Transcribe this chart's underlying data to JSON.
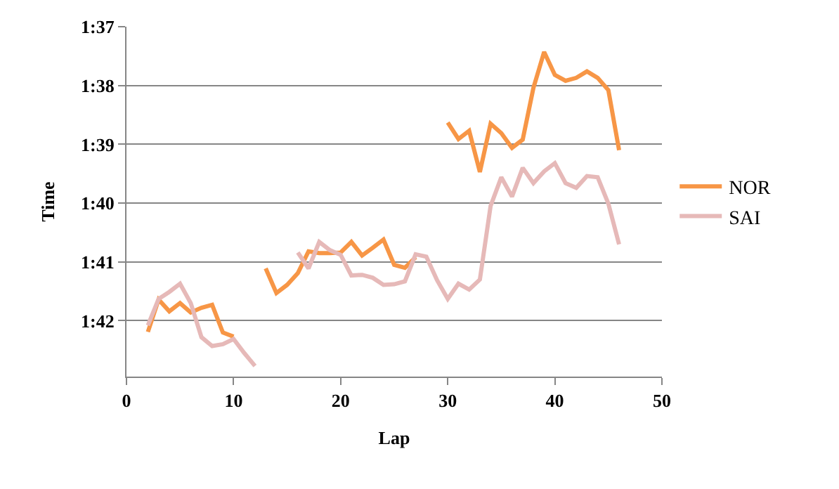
{
  "chart_data": {
    "type": "line",
    "xlabel": "Lap",
    "ylabel": "Time",
    "x": [
      2,
      3,
      4,
      5,
      6,
      7,
      8,
      9,
      10,
      11,
      12,
      13,
      14,
      15,
      16,
      17,
      18,
      19,
      20,
      21,
      22,
      23,
      24,
      25,
      26,
      27,
      28,
      29,
      30,
      31,
      32,
      33,
      34,
      35,
      36,
      37,
      38,
      39,
      40,
      41,
      42,
      43,
      44,
      45,
      46
    ],
    "series": [
      {
        "name": "NOR",
        "color": "#f79646",
        "values": [
          102.19,
          101.64,
          101.84,
          101.7,
          101.86,
          101.78,
          101.73,
          102.2,
          102.27,
          null,
          null,
          101.11,
          101.53,
          101.39,
          101.19,
          100.82,
          100.85,
          100.85,
          100.84,
          100.66,
          100.89,
          100.76,
          100.62,
          101.05,
          101.1,
          100.92,
          null,
          null,
          98.63,
          98.91,
          98.77,
          99.47,
          98.65,
          98.81,
          99.06,
          98.92,
          98.04,
          97.43,
          97.82,
          97.92,
          97.87,
          97.76,
          97.87,
          98.08,
          99.1
        ]
      },
      {
        "name": "SAI",
        "color": "#e6b9b8",
        "values": [
          102.08,
          101.63,
          101.51,
          101.37,
          101.7,
          102.28,
          102.43,
          102.4,
          102.31,
          102.55,
          102.77,
          null,
          null,
          null,
          100.84,
          101.11,
          100.66,
          100.8,
          100.88,
          101.23,
          101.22,
          101.27,
          101.39,
          101.38,
          101.33,
          100.87,
          100.91,
          101.31,
          101.63,
          101.37,
          101.47,
          101.3,
          100.05,
          99.56,
          99.89,
          99.4,
          99.66,
          99.46,
          99.32,
          99.66,
          99.74,
          99.54,
          99.56,
          100.01,
          100.7
        ]
      }
    ],
    "xlim": [
      0,
      50
    ],
    "xticks": [
      0,
      10,
      20,
      30,
      40,
      50
    ],
    "ylim": [
      102.95,
      97
    ],
    "yticks": [
      {
        "value": 97,
        "label": "1:37"
      },
      {
        "value": 98,
        "label": "1:38"
      },
      {
        "value": 99,
        "label": "1:39"
      },
      {
        "value": 100,
        "label": "1:40"
      },
      {
        "value": 101,
        "label": "1:41"
      },
      {
        "value": 102,
        "label": "1:42"
      }
    ],
    "grid": "y",
    "legend": "right",
    "marker": "none",
    "line_style": "solid"
  }
}
